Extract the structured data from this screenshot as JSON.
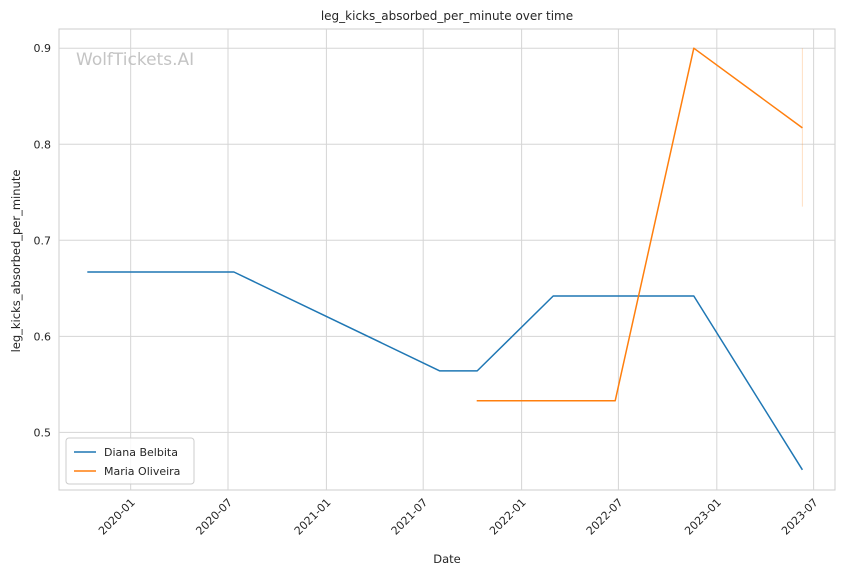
{
  "chart_data": {
    "type": "line",
    "title": "leg_kicks_absorbed_per_minute over time",
    "xlabel": "Date",
    "ylabel": "leg_kicks_absorbed_per_minute",
    "watermark": "WolfTickets.AI",
    "xlim": [
      "2019-08-20",
      "2023-08-10"
    ],
    "ylim": [
      0.44,
      0.92
    ],
    "x_ticks": [
      "2020-01",
      "2020-07",
      "2021-01",
      "2021-07",
      "2022-01",
      "2022-07",
      "2023-01",
      "2023-07"
    ],
    "y_ticks": [
      0.5,
      0.6,
      0.7,
      0.8,
      0.9
    ],
    "y_tick_labels": [
      "0.5",
      "0.6",
      "0.7",
      "0.8",
      "0.9"
    ],
    "grid": true,
    "legend_position": "lower-left",
    "series": [
      {
        "name": "Diana Belbita",
        "color": "#1f77b4",
        "points": [
          {
            "x": "2019-10-12",
            "y": 0.667
          },
          {
            "x": "2020-07-12",
            "y": 0.667
          },
          {
            "x": "2021-08-01",
            "y": 0.564
          },
          {
            "x": "2021-10-10",
            "y": 0.564
          },
          {
            "x": "2022-03-01",
            "y": 0.642
          },
          {
            "x": "2022-11-19",
            "y": 0.642
          },
          {
            "x": "2023-06-10",
            "y": 0.461
          }
        ]
      },
      {
        "name": "Maria Oliveira",
        "color": "#ff7f0e",
        "points": [
          {
            "x": "2021-10-09",
            "y": 0.533
          },
          {
            "x": "2022-06-25",
            "y": 0.533
          },
          {
            "x": "2022-11-19",
            "y": 0.9
          },
          {
            "x": "2023-06-10",
            "y": 0.817
          }
        ],
        "error_band": {
          "x": "2023-06-10",
          "low": 0.735,
          "high": 0.9
        }
      }
    ]
  }
}
